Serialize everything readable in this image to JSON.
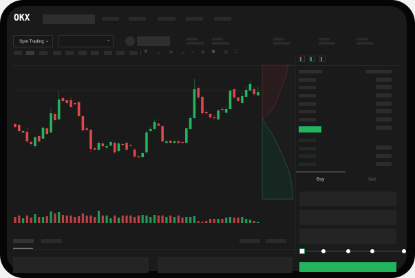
{
  "header": {
    "logo": "OKX"
  },
  "market_bar": {
    "mode_select": "Spot Trading"
  },
  "order_form": {
    "tabs": [
      "Buy",
      "Sell"
    ],
    "active_tab": "Buy",
    "leverage_steps": 5,
    "selected_step": 0
  },
  "colors": {
    "up": "#22b55e",
    "down": "#e0464b",
    "background": "#1a1a1a",
    "skeleton": "#2a2a2a"
  },
  "icons": [
    "chevron-down-icon",
    "orderbook-both-icon",
    "orderbook-bids-icon",
    "orderbook-asks-icon",
    "camera-icon",
    "settings-icon",
    "fullscreen-icon"
  ],
  "chart_data": {
    "type": "candlestick",
    "candles_ohlc": [
      [
        119,
        121,
        113,
        115
      ],
      [
        118,
        120,
        107,
        109
      ],
      [
        107,
        110,
        106,
        109
      ],
      [
        108,
        114,
        92,
        94
      ],
      [
        93,
        95,
        88,
        90
      ],
      [
        87,
        101,
        84,
        100
      ],
      [
        102,
        103,
        92,
        94
      ],
      [
        98,
        116,
        97,
        114
      ],
      [
        113,
        114,
        103,
        105
      ],
      [
        107,
        143,
        106,
        135
      ],
      [
        134,
        136,
        124,
        125
      ],
      [
        126,
        168,
        125,
        155
      ],
      [
        157,
        159,
        151,
        153
      ],
      [
        154,
        156,
        148,
        150
      ],
      [
        154,
        159,
        142,
        144
      ],
      [
        150,
        151,
        147,
        148
      ],
      [
        151,
        153,
        129,
        131
      ],
      [
        131,
        132,
        109,
        110
      ],
      [
        113,
        115,
        109,
        111
      ],
      [
        111,
        112,
        78,
        83
      ],
      [
        84,
        86,
        81,
        82
      ],
      [
        82,
        94,
        80,
        92
      ],
      [
        91,
        93,
        85,
        87
      ],
      [
        85,
        90,
        82,
        87
      ],
      [
        88,
        95,
        87,
        93
      ],
      [
        92,
        94,
        76,
        78
      ],
      [
        80,
        93,
        78,
        91
      ],
      [
        90,
        92,
        88,
        89
      ],
      [
        92,
        94,
        80,
        82
      ],
      [
        89,
        90,
        87,
        88
      ],
      [
        82,
        84,
        70,
        72
      ],
      [
        72,
        74,
        70,
        71
      ],
      [
        71,
        79,
        70,
        77
      ],
      [
        78,
        110,
        76,
        107
      ],
      [
        109,
        115,
        108,
        112
      ],
      [
        112,
        126,
        111,
        122
      ],
      [
        120,
        121,
        116,
        117
      ],
      [
        116,
        118,
        92,
        94
      ],
      [
        92,
        97,
        90,
        94
      ],
      [
        95,
        96,
        91,
        92
      ],
      [
        92,
        96,
        91,
        94
      ],
      [
        94,
        96,
        90,
        92
      ],
      [
        93,
        94,
        91,
        92
      ],
      [
        92,
        114,
        91,
        113
      ],
      [
        112,
        131,
        111,
        128
      ],
      [
        128,
        185,
        127,
        170
      ],
      [
        172,
        173,
        156,
        158
      ],
      [
        159,
        160,
        133,
        135
      ],
      [
        137,
        139,
        133,
        135
      ],
      [
        134,
        135,
        127,
        129
      ],
      [
        129,
        132,
        126,
        128
      ],
      [
        126,
        141,
        125,
        139
      ],
      [
        141,
        144,
        139,
        140
      ],
      [
        136,
        147,
        135,
        141
      ],
      [
        141,
        169,
        140,
        168
      ],
      [
        170,
        171,
        156,
        158
      ],
      [
        158,
        159,
        152,
        153
      ],
      [
        150,
        166,
        149,
        160
      ],
      [
        159,
        175,
        158,
        169
      ],
      [
        168,
        182,
        167,
        178
      ],
      [
        170,
        173,
        160,
        163
      ],
      [
        161,
        173,
        160,
        166
      ]
    ],
    "volumes": [
      9,
      11,
      7,
      11,
      8,
      13,
      9,
      9,
      10,
      17,
      14,
      16,
      12,
      11,
      11,
      9,
      10,
      14,
      11,
      11,
      9,
      18,
      11,
      11,
      7,
      11,
      8,
      11,
      11,
      11,
      9,
      11,
      12,
      11,
      9,
      12,
      11,
      11,
      9,
      11,
      9,
      11,
      8,
      9,
      9,
      10,
      3,
      2,
      3,
      6,
      6,
      6,
      6,
      8,
      9,
      8,
      8,
      9,
      6,
      5,
      3,
      2
    ],
    "reference_line_price": 168,
    "depth": {
      "asks": "cumulative",
      "bids": "cumulative"
    }
  }
}
